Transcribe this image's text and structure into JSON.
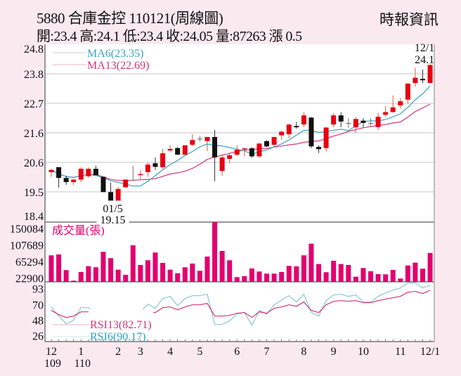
{
  "header": {
    "title": "5880  合庫金控 110121(周線圖)",
    "ohlc_line": "開:23.4 高:24.1 低:23.4 收:24.05 量:87263 漲 0.5",
    "source": "時報資訊"
  },
  "chart_data": {
    "type": "candlestick",
    "colors": {
      "up": "#e60012",
      "down": "#111111",
      "doji": "#888888",
      "ma6": "#3aa3c2",
      "ma13": "#d43574",
      "volume": "#e2006f",
      "rsi6": "#8cc6d2",
      "rsi13": "#d43574"
    },
    "price_axis": {
      "range": [
        18.4,
        24.8
      ],
      "tick_labels": [
        "24.8",
        "23.8",
        "22.7",
        "21.6",
        "20.6",
        "19.5",
        "18.4"
      ],
      "grid": true
    },
    "legend": {
      "ma6": "MA6(23.35)",
      "ma13": "MA13(22.69)",
      "rsi13": "RSI13(82.71)",
      "rsi6": "RSI6(90.17)"
    },
    "annotations": [
      {
        "index": 8,
        "date": "01/5",
        "value": "19.15",
        "position": "below"
      },
      {
        "index": 51,
        "date": "12/1",
        "value": "24.1",
        "position": "above"
      }
    ],
    "candles": {
      "open": [
        20.18,
        20.36,
        19.97,
        19.82,
        19.91,
        20.03,
        20.3,
        20.01,
        19.46,
        19.15,
        19.63,
        19.9,
        20.07,
        20.18,
        20.5,
        20.36,
        20.96,
        21.05,
        20.81,
        21.17,
        21.4,
        21.3,
        21.45,
        20.22,
        20.66,
        20.81,
        21.0,
        21.04,
        20.75,
        21.3,
        21.17,
        21.51,
        21.55,
        21.85,
        21.9,
        22.15,
        21.09,
        21.05,
        21.9,
        22.23,
        21.96,
        21.8,
        22.04,
        21.96,
        21.81,
        22.25,
        22.35,
        22.59,
        22.8,
        23.4,
        23.55,
        23.4
      ],
      "high": [
        20.3,
        20.36,
        20.05,
        19.92,
        20.36,
        20.35,
        20.41,
        20.01,
        19.8,
        19.65,
        19.92,
        20.41,
        20.26,
        20.52,
        20.71,
        21.02,
        21.15,
        21.09,
        21.15,
        21.55,
        21.5,
        21.45,
        21.7,
        20.83,
        20.88,
        21.15,
        21.06,
        21.08,
        21.25,
        21.34,
        21.45,
        21.68,
        21.92,
        22.0,
        22.35,
        22.17,
        21.15,
        21.82,
        22.32,
        22.35,
        22.13,
        22.17,
        22.13,
        22.13,
        22.33,
        22.57,
        22.95,
        22.85,
        23.4,
        23.95,
        23.89,
        24.1
      ],
      "low": [
        20.01,
        19.62,
        19.72,
        19.72,
        19.82,
        19.98,
        20.07,
        19.46,
        19.15,
        19.15,
        19.63,
        19.9,
        19.92,
        20.01,
        20.26,
        20.3,
        20.92,
        20.81,
        20.79,
        21.11,
        21.28,
        20.94,
        19.85,
        20.05,
        20.5,
        20.77,
        20.75,
        20.7,
        20.7,
        21.08,
        21.1,
        21.35,
        21.4,
        21.75,
        21.8,
        21.05,
        20.87,
        20.93,
        21.8,
        21.8,
        21.78,
        21.6,
        21.8,
        21.82,
        21.7,
        22.17,
        22.33,
        22.48,
        22.66,
        23.27,
        23.4,
        23.4
      ],
      "close": [
        20.26,
        19.97,
        19.82,
        19.91,
        20.3,
        20.3,
        20.07,
        19.46,
        19.15,
        19.57,
        19.91,
        19.9,
        20.11,
        20.45,
        20.37,
        20.86,
        21.02,
        20.81,
        21.15,
        21.34,
        21.4,
        21.45,
        20.71,
        20.71,
        20.79,
        20.99,
        21.04,
        20.75,
        21.21,
        21.11,
        21.45,
        21.64,
        21.9,
        21.8,
        22.23,
        21.11,
        21.01,
        21.79,
        22.23,
        22.01,
        21.96,
        22.1,
        21.96,
        21.96,
        22.18,
        22.35,
        22.52,
        22.74,
        23.38,
        23.59,
        23.5,
        24.05
      ]
    },
    "volume": {
      "label": "成交量(張)",
      "tick_labels": [
        "150084",
        "107689",
        "65294",
        "22900"
      ],
      "values": [
        81200,
        83500,
        43400,
        16400,
        38600,
        53500,
        50600,
        90200,
        74000,
        44500,
        31400,
        106900,
        56500,
        68600,
        88400,
        61900,
        44500,
        35500,
        50600,
        60100,
        41600,
        78100,
        166800,
        92500,
        68600,
        25400,
        27800,
        47600,
        39800,
        34400,
        34400,
        38600,
        54200,
        52900,
        81200,
        111100,
        58900,
        38000,
        67300,
        58900,
        56500,
        26500,
        48800,
        40400,
        33200,
        32600,
        44000,
        21800,
        55300,
        62500,
        47000,
        87263
      ]
    },
    "rsi": {
      "tick_labels": [
        "93",
        "70",
        "48",
        "26"
      ],
      "rsi6": [
        59,
        46,
        35,
        40,
        58,
        58,
        47,
        32,
        22,
        30,
        43,
        45,
        52,
        63,
        57,
        71,
        74,
        61,
        71,
        75,
        75,
        77,
        34,
        34,
        39,
        49,
        51,
        33,
        54,
        49,
        62,
        69,
        75,
        66,
        77,
        51,
        46,
        68,
        76,
        77,
        74,
        76,
        66,
        66,
        74,
        79,
        83,
        86,
        93,
        93,
        86,
        90.17
      ],
      "rsi13": [
        54,
        48,
        44,
        46,
        52,
        52,
        47,
        40,
        34,
        37,
        43,
        44,
        47,
        52,
        51,
        58,
        59,
        55,
        59,
        62,
        62,
        64,
        46,
        46,
        47,
        50,
        51,
        44,
        52,
        50,
        57,
        59,
        62,
        60,
        66,
        54,
        51,
        62,
        67,
        68,
        67,
        68,
        65,
        65,
        68,
        70,
        72,
        74,
        80,
        81,
        78,
        82.71
      ]
    },
    "x_axis": {
      "labels": [
        {
          "index": 0,
          "month": "12",
          "year": "109"
        },
        {
          "index": 4,
          "month": "1",
          "year": "110"
        },
        {
          "index": 9,
          "month": "2"
        },
        {
          "index": 12,
          "month": "3"
        },
        {
          "index": 16,
          "month": "4"
        },
        {
          "index": 20,
          "month": "5"
        },
        {
          "index": 25,
          "month": "6"
        },
        {
          "index": 29,
          "month": "7"
        },
        {
          "index": 34,
          "month": "8"
        },
        {
          "index": 38,
          "month": "9"
        },
        {
          "index": 42,
          "month": "10"
        },
        {
          "index": 47,
          "month": "11"
        },
        {
          "index": 51,
          "month": "12/1"
        }
      ]
    }
  }
}
